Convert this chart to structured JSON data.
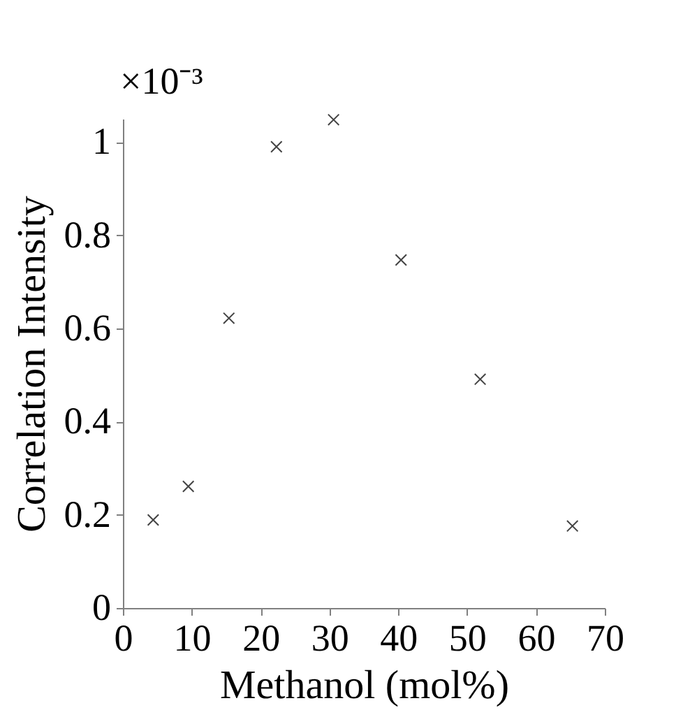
{
  "chart_data": {
    "type": "scatter",
    "xlabel": "Methanol (mol%)",
    "ylabel": "Correlation Intensity",
    "annotations": [
      "×10⁻³"
    ],
    "x": [
      4.4,
      9.5,
      15.4,
      22.3,
      30.6,
      40.4,
      51.9,
      65.3
    ],
    "series": [
      {
        "color": "#444444",
        "values": [
          0.189,
          0.261,
          0.622,
          0.99,
          1.048,
          0.747,
          0.491,
          0.176
        ]
      }
    ],
    "xlim": [
      0,
      70
    ],
    "xticks": [
      0,
      10,
      20,
      30,
      40,
      50,
      60,
      70
    ],
    "ylim": [
      0,
      1.05
    ],
    "yticks": [
      0,
      0.2,
      0.4,
      0.6,
      0.8,
      1
    ],
    "grid": false,
    "marker": "cross"
  }
}
